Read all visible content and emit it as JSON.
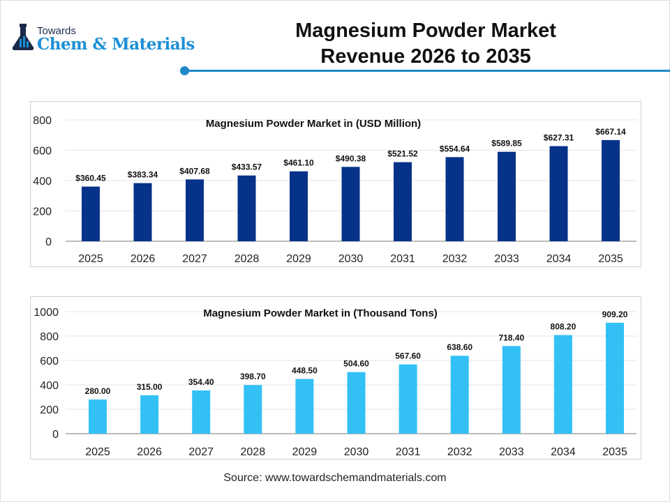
{
  "logo": {
    "line1": "Towards",
    "line2": "Chem & Materials"
  },
  "header": {
    "title_line1": "Magnesium Powder Market",
    "title_line2": "Revenue 2026 to 2035"
  },
  "colors": {
    "accent": "#1e88c8",
    "bar_revenue": "#06328a",
    "bar_volume": "#33c1f5"
  },
  "chart_data": [
    {
      "type": "bar",
      "title": "Magnesium Powder Market in (USD Million)",
      "categories": [
        "2025",
        "2026",
        "2027",
        "2028",
        "2029",
        "2030",
        "2031",
        "2032",
        "2033",
        "2034",
        "2035"
      ],
      "values": [
        360.45,
        383.34,
        407.68,
        433.57,
        461.1,
        490.38,
        521.52,
        554.64,
        589.85,
        627.31,
        667.14
      ],
      "labels": [
        "$360.45",
        "$383.34",
        "$407.68",
        "$433.57",
        "$461.10",
        "$490.38",
        "$521.52",
        "$554.64",
        "$589.85",
        "$627.31",
        "$667.14"
      ],
      "yticks": [
        "0",
        "200",
        "400",
        "600",
        "800"
      ],
      "ylim": [
        0,
        800
      ],
      "grid": true
    },
    {
      "type": "bar",
      "title": "Magnesium Powder Market in (Thousand Tons)",
      "categories": [
        "2025",
        "2026",
        "2027",
        "2028",
        "2029",
        "2030",
        "2031",
        "2032",
        "2033",
        "2034",
        "2035"
      ],
      "values": [
        280.0,
        315.0,
        354.4,
        398.7,
        448.5,
        504.6,
        567.6,
        638.6,
        718.4,
        808.2,
        909.2
      ],
      "labels": [
        "280.00",
        "315.00",
        "354.40",
        "398.70",
        "448.50",
        "504.60",
        "567.60",
        "638.60",
        "718.40",
        "808.20",
        "909.20"
      ],
      "yticks": [
        "0",
        "200",
        "400",
        "600",
        "800",
        "1000"
      ],
      "ylim": [
        0,
        1000
      ],
      "grid": true
    }
  ],
  "footer": {
    "source": "Source: www.towardschemandmaterials.com"
  }
}
